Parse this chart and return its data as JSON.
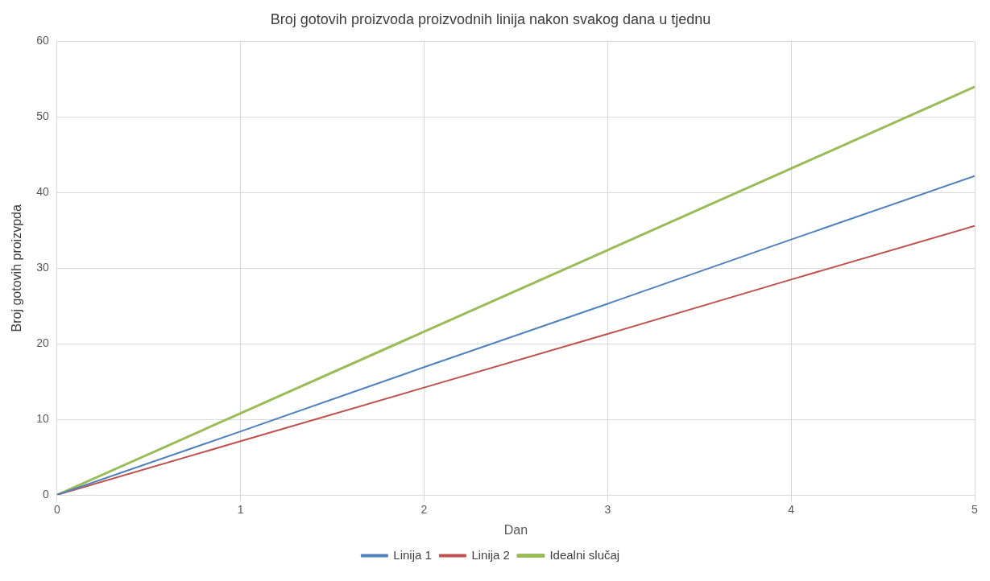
{
  "chart_data": {
    "type": "line",
    "title": "Broj gotovih proizvoda proizvodnih linija nakon svakog dana u tjednu",
    "xlabel": "Dan",
    "ylabel": "Broj gotovih proizvpda",
    "x": [
      0,
      1,
      2,
      3,
      4,
      5
    ],
    "series": [
      {
        "name": "Linija 1",
        "color": "#4f81bd",
        "values": [
          0,
          8.4,
          16.9,
          25.3,
          33.8,
          42.2
        ]
      },
      {
        "name": "Linija 2",
        "color": "#c0504d",
        "values": [
          0,
          7.1,
          14.2,
          21.3,
          28.5,
          35.6
        ]
      },
      {
        "name": "Idealni slučaj",
        "color": "#9bbb59",
        "values": [
          0,
          10.8,
          21.6,
          32.4,
          43.2,
          54
        ]
      }
    ],
    "xlim": [
      0,
      5
    ],
    "xticks": [
      0,
      1,
      2,
      3,
      4,
      5
    ],
    "ylim": [
      0,
      60
    ],
    "yticks": [
      0,
      10,
      20,
      30,
      40,
      50,
      60
    ],
    "grid": true,
    "legend": "bottom",
    "marker": "none",
    "line_style": "solid"
  }
}
